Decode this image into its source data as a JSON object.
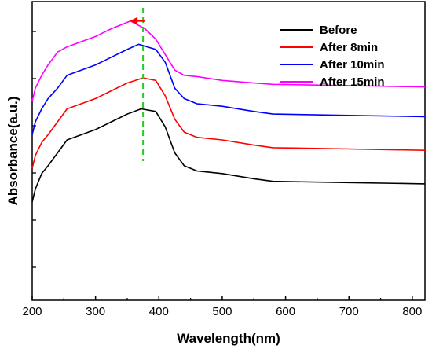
{
  "chart_data": {
    "type": "line",
    "xlabel": "Wavelength(nm)",
    "ylabel": "Absorbance(a.u.)",
    "xlim": [
      200,
      820
    ],
    "ylim": [
      0,
      1
    ],
    "x_ticks": [
      200,
      300,
      400,
      500,
      600,
      700,
      800
    ],
    "y_ticks_labeled": false,
    "grid": false,
    "legend_position": "top-right",
    "series": [
      {
        "name": "Before",
        "color": "#000000",
        "points": [
          [
            200,
            0.33
          ],
          [
            205,
            0.38
          ],
          [
            215,
            0.44
          ],
          [
            225,
            0.47
          ],
          [
            240,
            0.52
          ],
          [
            255,
            0.57
          ],
          [
            300,
            0.61
          ],
          [
            325,
            0.64
          ],
          [
            350,
            0.67
          ],
          [
            372,
            0.69
          ],
          [
            395,
            0.68
          ],
          [
            410,
            0.62
          ],
          [
            425,
            0.52
          ],
          [
            440,
            0.47
          ],
          [
            460,
            0.45
          ],
          [
            500,
            0.44
          ],
          [
            550,
            0.42
          ],
          [
            580,
            0.41
          ],
          [
            700,
            0.405
          ],
          [
            820,
            0.4
          ]
        ]
      },
      {
        "name": "After 8min",
        "color": "#ff0000",
        "points": [
          [
            200,
            0.46
          ],
          [
            205,
            0.51
          ],
          [
            215,
            0.56
          ],
          [
            225,
            0.59
          ],
          [
            240,
            0.64
          ],
          [
            255,
            0.69
          ],
          [
            300,
            0.73
          ],
          [
            325,
            0.76
          ],
          [
            350,
            0.79
          ],
          [
            375,
            0.81
          ],
          [
            395,
            0.8
          ],
          [
            410,
            0.74
          ],
          [
            425,
            0.65
          ],
          [
            440,
            0.6
          ],
          [
            460,
            0.58
          ],
          [
            500,
            0.57
          ],
          [
            550,
            0.55
          ],
          [
            580,
            0.54
          ],
          [
            700,
            0.535
          ],
          [
            820,
            0.53
          ]
        ]
      },
      {
        "name": "After 10min",
        "color": "#0000ff",
        "points": [
          [
            200,
            0.59
          ],
          [
            205,
            0.64
          ],
          [
            215,
            0.69
          ],
          [
            225,
            0.73
          ],
          [
            240,
            0.77
          ],
          [
            255,
            0.82
          ],
          [
            300,
            0.86
          ],
          [
            325,
            0.89
          ],
          [
            350,
            0.92
          ],
          [
            368,
            0.94
          ],
          [
            395,
            0.92
          ],
          [
            410,
            0.87
          ],
          [
            425,
            0.77
          ],
          [
            440,
            0.73
          ],
          [
            460,
            0.71
          ],
          [
            500,
            0.7
          ],
          [
            550,
            0.68
          ],
          [
            580,
            0.67
          ],
          [
            700,
            0.665
          ],
          [
            820,
            0.66
          ]
        ]
      },
      {
        "name": "After 15min",
        "color": "#ff00ff",
        "points": [
          [
            200,
            0.72
          ],
          [
            205,
            0.77
          ],
          [
            215,
            0.82
          ],
          [
            225,
            0.86
          ],
          [
            240,
            0.91
          ],
          [
            255,
            0.93
          ],
          [
            300,
            0.97
          ],
          [
            325,
            1.0
          ],
          [
            345,
            1.02
          ],
          [
            355,
            1.03
          ],
          [
            378,
            1.0
          ],
          [
            395,
            0.96
          ],
          [
            410,
            0.9
          ],
          [
            425,
            0.84
          ],
          [
            440,
            0.82
          ],
          [
            460,
            0.815
          ],
          [
            500,
            0.8
          ],
          [
            550,
            0.79
          ],
          [
            580,
            0.785
          ],
          [
            700,
            0.78
          ],
          [
            820,
            0.775
          ]
        ]
      }
    ],
    "annotations": {
      "vertical_dashed_line": {
        "x": 375,
        "color": "#22cc22"
      },
      "shift_arrow": {
        "from_x": 378,
        "to_x": 354,
        "y": 1.03,
        "color": "#ff0000"
      }
    }
  }
}
